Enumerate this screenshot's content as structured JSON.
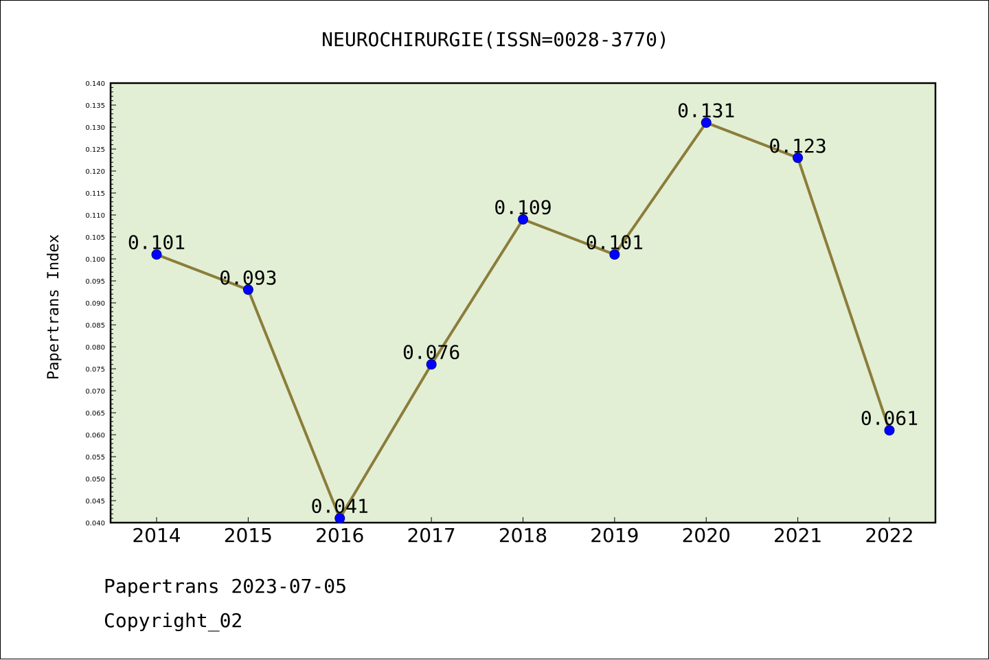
{
  "chart_data": {
    "type": "line",
    "title": "NEUROCHIRURGIE(ISSN=0028-3770)",
    "xlabel": "",
    "ylabel": "Papertrans Index",
    "categories": [
      "2014",
      "2015",
      "2016",
      "2017",
      "2018",
      "2019",
      "2020",
      "2021",
      "2022"
    ],
    "values": [
      0.101,
      0.093,
      0.041,
      0.076,
      0.109,
      0.101,
      0.131,
      0.123,
      0.061
    ],
    "data_labels": [
      "0.101",
      "0.093",
      "0.041",
      "0.076",
      "0.109",
      "0.101",
      "0.131",
      "0.123",
      "0.061"
    ],
    "ylim": [
      0.04,
      0.14
    ],
    "yticks": [
      "0.040",
      "0.045",
      "0.050",
      "0.055",
      "0.060",
      "0.065",
      "0.070",
      "0.075",
      "0.080",
      "0.085",
      "0.090",
      "0.095",
      "0.100",
      "0.105",
      "0.110",
      "0.115",
      "0.120",
      "0.125",
      "0.130",
      "0.135",
      "0.140"
    ],
    "grid": false,
    "colors": {
      "plot_background": "#e2efd5",
      "line": "#8b7d3a",
      "marker": "#0000ff"
    }
  },
  "footer": {
    "line1": "Papertrans 2023-07-05",
    "line2": "Copyright_02"
  }
}
